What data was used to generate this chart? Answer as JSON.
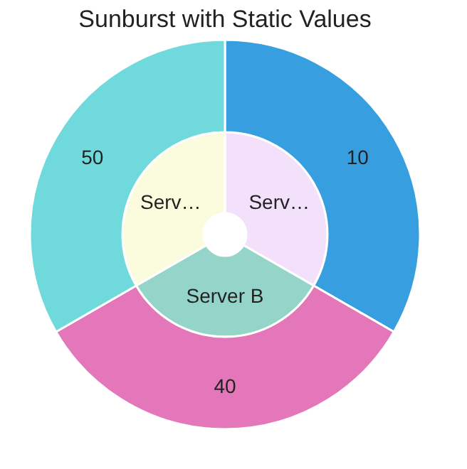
{
  "chart_data": {
    "type": "other",
    "title": "Sunburst with Static Values",
    "data_labels": true,
    "categories": [
      "Serv…",
      "Server B",
      "Serv…"
    ],
    "colors": [
      "#f3e1fb",
      "#95d5c9",
      "#fbfcdd"
    ],
    "series": [
      {
        "values": [
          10,
          40,
          50
        ],
        "colors": [
          "#379fe0",
          "#e377b9",
          "#70d9db"
        ]
      }
    ]
  }
}
